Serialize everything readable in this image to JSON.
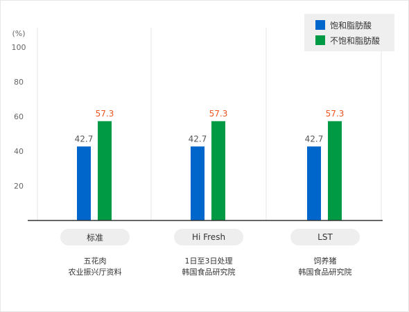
{
  "chart_data": {
    "type": "bar",
    "y_unit_label": "(%)",
    "ylim": [
      0,
      100
    ],
    "y_ticks": [
      20,
      40,
      60,
      80,
      100
    ],
    "categories": [
      "标准",
      "Hi Fresh",
      "LST"
    ],
    "category_sources": [
      [
        "五花肉",
        "农业振兴厅资料"
      ],
      [
        "1日至3日处理",
        "韩国食品研究院"
      ],
      [
        "饲养猪",
        "韩国食品研究院"
      ]
    ],
    "series": [
      {
        "name": "饱和脂肪酸",
        "values": [
          42.7,
          42.7,
          42.7
        ]
      },
      {
        "name": "不饱和脂肪酸",
        "values": [
          57.3,
          57.3,
          57.3
        ]
      }
    ],
    "data_labels": [
      [
        "42.7",
        "57.3"
      ],
      [
        "42.7",
        "57.3"
      ],
      [
        "42.7",
        "57.3"
      ]
    ],
    "legend_position": "top-right",
    "grid": false
  },
  "colors": {
    "saturated": "#0066cc",
    "unsaturated": "#009944",
    "saturated_label": "#555555",
    "unsaturated_label": "#ee5522",
    "axis": "#333333",
    "tick_label": "#666666",
    "separator": "#e6e6e6"
  }
}
